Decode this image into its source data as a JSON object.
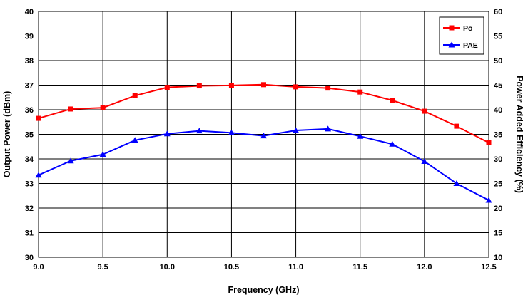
{
  "chart_data": {
    "type": "line",
    "xlabel": "Frequency (GHz)",
    "ylabel_left": "Output Power (dBm)",
    "ylabel_right": "Power Added Efficiency (%)",
    "xlim": [
      9.0,
      12.5
    ],
    "ylim_left": [
      30,
      40
    ],
    "ylim_right": [
      10,
      60
    ],
    "x_ticks": [
      "9.0",
      "9.5",
      "10.0",
      "10.5",
      "11.0",
      "11.5",
      "12.0",
      "12.5"
    ],
    "y_left_ticks": [
      "30",
      "31",
      "32",
      "33",
      "34",
      "35",
      "36",
      "37",
      "38",
      "39",
      "40"
    ],
    "y_right_ticks": [
      "10",
      "15",
      "20",
      "25",
      "30",
      "35",
      "40",
      "45",
      "50",
      "55",
      "60"
    ],
    "grid": true,
    "legend_position": "top-right",
    "x": [
      9.0,
      9.25,
      9.5,
      9.75,
      10.0,
      10.25,
      10.5,
      10.75,
      11.0,
      11.25,
      11.5,
      11.75,
      12.0,
      12.25,
      12.5
    ],
    "series": [
      {
        "name": "Po",
        "axis": "left",
        "color": "#ff0000",
        "marker": "square",
        "values": [
          35.65,
          36.03,
          36.08,
          36.57,
          36.91,
          36.97,
          36.99,
          37.02,
          36.93,
          36.88,
          36.72,
          36.38,
          35.94,
          35.33,
          34.66
        ]
      },
      {
        "name": "PAE",
        "axis": "right",
        "color": "#0000ff",
        "marker": "triangle",
        "values": [
          26.7,
          29.6,
          30.9,
          33.8,
          35.1,
          35.7,
          35.3,
          34.7,
          35.8,
          36.1,
          34.6,
          33.0,
          29.5,
          25.0,
          21.6
        ]
      }
    ]
  }
}
